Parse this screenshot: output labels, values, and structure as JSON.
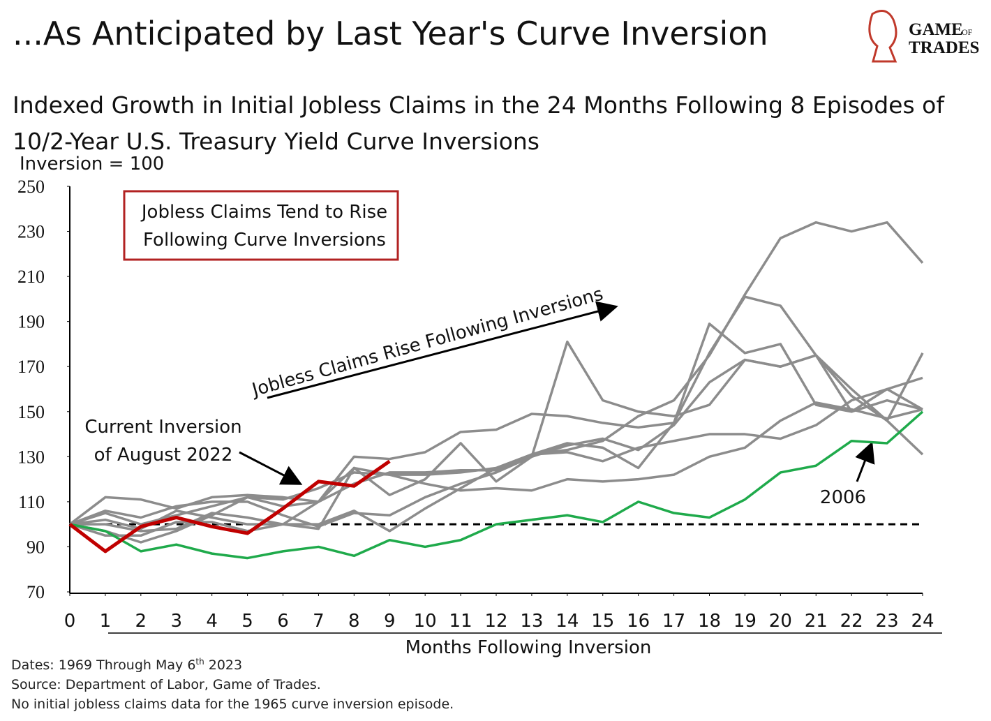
{
  "chart_data": {
    "type": "line",
    "title": "...As Anticipated by Last Year's Curve Inversion",
    "subtitle": [
      "Indexed Growth in Initial Jobless Claims in the 24 Months Following 8 Episodes of",
      "10/2-Year U.S. Treasury Yield Curve Inversions"
    ],
    "y_label": "Inversion = 100",
    "x_label": "Months Following Inversion",
    "logo": [
      "GAME",
      "OF",
      "TRADES"
    ],
    "annotations": {
      "box": [
        "Jobless Claims Tend to Rise",
        "Following Curve Inversions"
      ],
      "arrow": "Jobless Claims Rise Following Inversions",
      "current": [
        "Current Inversion",
        "of August 2022"
      ],
      "green": "2006"
    },
    "footnotes": [
      [
        "Dates: 1969 Through May 6",
        "th",
        " 2023"
      ],
      "Source: Department of Labor, Game of Trades.",
      "No initial jobless claims data for the 1965 curve inversion episode."
    ],
    "baseline": 100,
    "x": [
      0,
      1,
      2,
      3,
      4,
      5,
      6,
      7,
      8,
      9,
      10,
      11,
      12,
      13,
      14,
      15,
      16,
      17,
      18,
      19,
      20,
      21,
      22,
      23,
      24
    ],
    "xlim": [
      0,
      24
    ],
    "xticks": [
      0,
      1,
      2,
      3,
      4,
      5,
      6,
      7,
      8,
      9,
      10,
      11,
      12,
      13,
      14,
      15,
      16,
      17,
      18,
      19,
      20,
      21,
      22,
      23,
      24
    ],
    "ylim": [
      70,
      250
    ],
    "yticks": [
      70,
      90,
      110,
      130,
      150,
      170,
      190,
      210,
      230,
      250
    ],
    "series": [
      {
        "color": "#8c8c8c",
        "values": [
          100,
          105,
          100,
          104,
          108,
          112,
          108,
          110,
          125,
          122,
          122,
          123,
          125,
          131,
          133,
          137,
          148,
          155,
          175,
          202,
          227,
          234,
          230,
          234,
          216
        ]
      },
      {
        "color": "#8c8c8c",
        "values": [
          100,
          112,
          111,
          107,
          112,
          113,
          112,
          110,
          130,
          129,
          132,
          141,
          142,
          149,
          148,
          145,
          143,
          145,
          176,
          201,
          197,
          175,
          160,
          146,
          131
        ]
      },
      {
        "color": "#8c8c8c",
        "values": [
          100,
          102,
          98,
          106,
          103,
          100,
          100,
          98,
          125,
          113,
          120,
          136,
          119,
          130,
          181,
          155,
          150,
          148,
          153,
          173,
          170,
          175,
          157,
          146,
          176
        ]
      },
      {
        "color": "#8c8c8c",
        "values": [
          100,
          95,
          95,
          101,
          101,
          97,
          100,
          100,
          106,
          97,
          107,
          116,
          125,
          131,
          136,
          134,
          125,
          145,
          189,
          176,
          180,
          153,
          150,
          155,
          151
        ]
      },
      {
        "color": "#8c8c8c",
        "values": [
          100,
          97,
          92,
          97,
          104,
          112,
          111,
          116,
          123,
          122,
          118,
          115,
          116,
          115,
          120,
          119,
          120,
          122,
          130,
          134,
          146,
          154,
          151,
          147,
          151
        ]
      },
      {
        "color": "#8c8c8c",
        "values": [
          100,
          106,
          103,
          108,
          110,
          110,
          104,
          99,
          105,
          104,
          112,
          118,
          123,
          130,
          135,
          138,
          133,
          144,
          163,
          173,
          170,
          175,
          150,
          160,
          151
        ]
      },
      {
        "color": "#8c8c8c",
        "values": [
          100,
          100,
          97,
          98,
          105,
          103,
          100,
          110,
          118,
          123,
          123,
          124,
          124,
          131,
          132,
          128,
          134,
          137,
          140,
          140,
          138,
          144,
          155,
          160,
          165
        ]
      },
      {
        "color": "#1faa4b",
        "values": [
          100,
          97,
          88,
          91,
          87,
          85,
          88,
          90,
          86,
          93,
          90,
          93,
          100,
          102,
          104,
          101,
          110,
          105,
          103,
          111,
          123,
          126,
          137,
          136,
          150
        ]
      },
      {
        "color": "#c00000",
        "values": [
          100,
          88,
          99,
          103,
          99,
          96,
          107,
          119,
          117,
          128,
          null,
          null,
          null,
          null,
          null,
          null,
          null,
          null,
          null,
          null,
          null,
          null,
          null,
          null,
          null
        ]
      }
    ]
  }
}
